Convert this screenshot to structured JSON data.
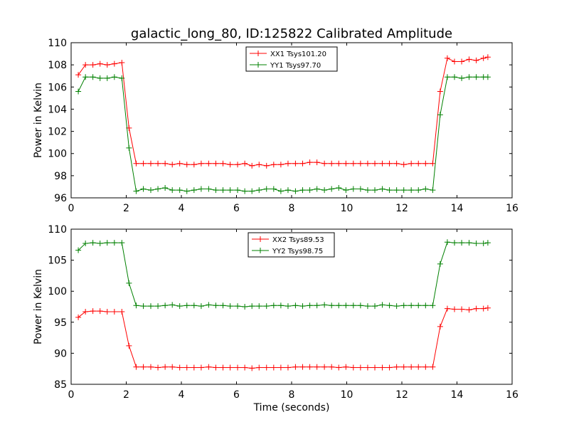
{
  "figure": {
    "title": "galactic_long_80, ID:125822 Calibrated Amplitude"
  },
  "chart_data": [
    {
      "type": "line",
      "title": "galactic_long_80, ID:125822 Calibrated Amplitude",
      "xlabel": "",
      "ylabel": "Power in Kelvin",
      "xlim": [
        0,
        16
      ],
      "ylim": [
        96,
        110
      ],
      "xticks": [
        0,
        2,
        4,
        6,
        8,
        10,
        12,
        14,
        16
      ],
      "yticks": [
        96,
        98,
        100,
        102,
        104,
        106,
        108,
        110
      ],
      "grid": false,
      "legend": "top-center",
      "x": [
        0.26,
        0.52,
        0.79,
        1.05,
        1.31,
        1.57,
        1.84,
        2.1,
        2.36,
        2.62,
        2.89,
        3.15,
        3.41,
        3.67,
        3.94,
        4.2,
        4.46,
        4.72,
        4.99,
        5.25,
        5.51,
        5.77,
        6.04,
        6.3,
        6.56,
        6.82,
        7.09,
        7.35,
        7.61,
        7.87,
        8.14,
        8.4,
        8.66,
        8.92,
        9.19,
        9.45,
        9.71,
        9.97,
        10.24,
        10.5,
        10.76,
        11.02,
        11.29,
        11.55,
        11.81,
        12.07,
        12.34,
        12.6,
        12.86,
        13.12,
        13.39,
        13.65,
        13.91,
        14.17,
        14.44,
        14.7,
        14.96,
        15.12
      ],
      "series": [
        {
          "name": "XX1 Tsys101.20",
          "color": "#ff0000",
          "values": [
            107.1,
            108.0,
            108.0,
            108.1,
            108.0,
            108.1,
            108.2,
            102.3,
            99.1,
            99.1,
            99.1,
            99.1,
            99.1,
            99.0,
            99.1,
            99.0,
            99.0,
            99.1,
            99.1,
            99.1,
            99.1,
            99.0,
            99.0,
            99.1,
            98.9,
            99.0,
            98.9,
            99.0,
            99.0,
            99.1,
            99.1,
            99.1,
            99.2,
            99.2,
            99.1,
            99.1,
            99.1,
            99.1,
            99.1,
            99.1,
            99.1,
            99.1,
            99.1,
            99.1,
            99.1,
            99.0,
            99.1,
            99.1,
            99.1,
            99.1,
            105.6,
            108.6,
            108.3,
            108.3,
            108.5,
            108.4,
            108.6,
            108.7
          ]
        },
        {
          "name": "YY1 Tsys97.70",
          "color": "#008000",
          "values": [
            105.6,
            106.9,
            106.9,
            106.8,
            106.8,
            106.9,
            106.8,
            100.5,
            96.6,
            96.8,
            96.7,
            96.8,
            96.9,
            96.7,
            96.7,
            96.6,
            96.7,
            96.8,
            96.8,
            96.7,
            96.7,
            96.7,
            96.7,
            96.6,
            96.6,
            96.7,
            96.8,
            96.8,
            96.6,
            96.7,
            96.6,
            96.7,
            96.7,
            96.8,
            96.7,
            96.8,
            96.9,
            96.7,
            96.8,
            96.8,
            96.7,
            96.7,
            96.8,
            96.7,
            96.7,
            96.7,
            96.7,
            96.7,
            96.8,
            96.7,
            103.5,
            106.9,
            106.9,
            106.8,
            106.9,
            106.9,
            106.9,
            106.9
          ]
        }
      ]
    },
    {
      "type": "line",
      "title": "",
      "xlabel": "Time (seconds)",
      "ylabel": "Power in Kelvin",
      "xlim": [
        0,
        16
      ],
      "ylim": [
        85,
        110
      ],
      "xticks": [
        0,
        2,
        4,
        6,
        8,
        10,
        12,
        14,
        16
      ],
      "yticks": [
        85,
        90,
        95,
        100,
        105,
        110
      ],
      "grid": false,
      "legend": "top-center",
      "x": [
        0.26,
        0.52,
        0.79,
        1.05,
        1.31,
        1.57,
        1.84,
        2.1,
        2.36,
        2.62,
        2.89,
        3.15,
        3.41,
        3.67,
        3.94,
        4.2,
        4.46,
        4.72,
        4.99,
        5.25,
        5.51,
        5.77,
        6.04,
        6.3,
        6.56,
        6.82,
        7.09,
        7.35,
        7.61,
        7.87,
        8.14,
        8.4,
        8.66,
        8.92,
        9.19,
        9.45,
        9.71,
        9.97,
        10.24,
        10.5,
        10.76,
        11.02,
        11.29,
        11.55,
        11.81,
        12.07,
        12.34,
        12.6,
        12.86,
        13.12,
        13.39,
        13.65,
        13.91,
        14.17,
        14.44,
        14.7,
        14.96,
        15.12
      ],
      "series": [
        {
          "name": "XX2 Tsys89.53",
          "color": "#ff0000",
          "values": [
            95.8,
            96.7,
            96.8,
            96.8,
            96.7,
            96.7,
            96.7,
            91.2,
            87.8,
            87.8,
            87.8,
            87.7,
            87.8,
            87.8,
            87.7,
            87.7,
            87.7,
            87.7,
            87.8,
            87.7,
            87.7,
            87.7,
            87.7,
            87.7,
            87.6,
            87.7,
            87.7,
            87.7,
            87.7,
            87.7,
            87.8,
            87.8,
            87.8,
            87.8,
            87.8,
            87.8,
            87.7,
            87.8,
            87.7,
            87.7,
            87.7,
            87.7,
            87.7,
            87.7,
            87.8,
            87.8,
            87.8,
            87.8,
            87.8,
            87.8,
            94.3,
            97.2,
            97.1,
            97.1,
            97.0,
            97.2,
            97.2,
            97.3
          ]
        },
        {
          "name": "YY2 Tsys98.75",
          "color": "#008000",
          "values": [
            106.6,
            107.7,
            107.8,
            107.7,
            107.8,
            107.8,
            107.8,
            101.3,
            97.7,
            97.6,
            97.6,
            97.6,
            97.7,
            97.8,
            97.6,
            97.7,
            97.7,
            97.6,
            97.8,
            97.7,
            97.7,
            97.6,
            97.6,
            97.5,
            97.6,
            97.6,
            97.6,
            97.7,
            97.7,
            97.6,
            97.7,
            97.6,
            97.7,
            97.7,
            97.8,
            97.7,
            97.7,
            97.7,
            97.7,
            97.7,
            97.6,
            97.6,
            97.8,
            97.7,
            97.6,
            97.7,
            97.7,
            97.7,
            97.7,
            97.7,
            104.4,
            107.9,
            107.8,
            107.8,
            107.8,
            107.7,
            107.7,
            107.8
          ]
        }
      ]
    }
  ]
}
